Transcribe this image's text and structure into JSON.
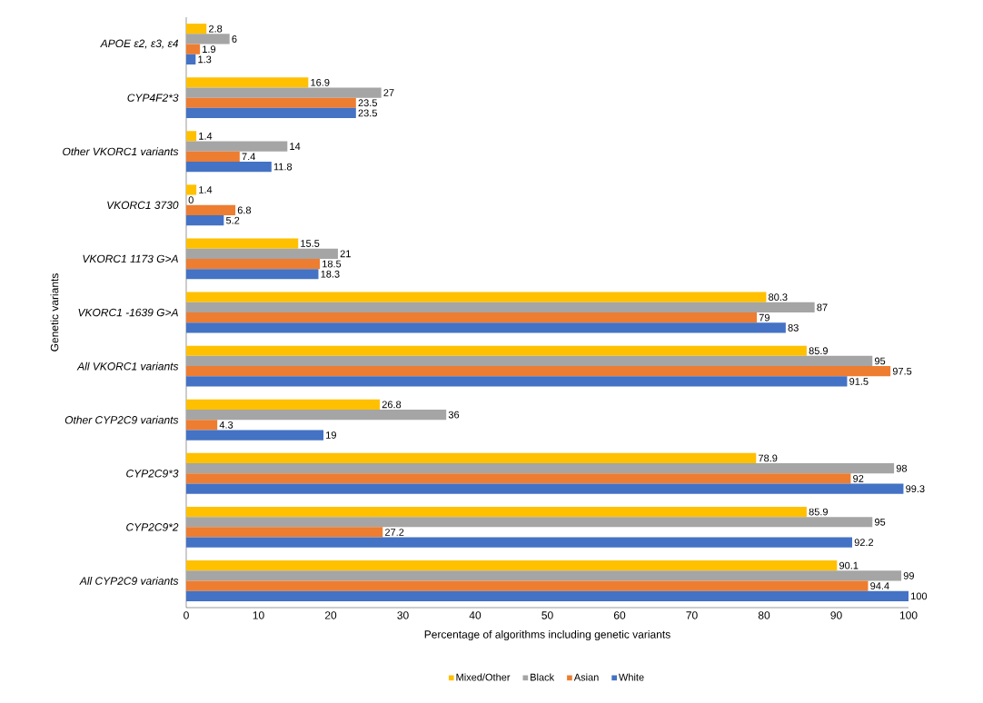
{
  "chart_data": {
    "type": "bar",
    "orientation": "horizontal",
    "xlabel": "Percentage of algorithms including genetic variants",
    "ylabel": "Genetic variants",
    "categories": [
      "APOE ε2, ε3, ε4",
      "CYP4F2*3",
      "Other VKORC1 variants",
      "VKORC1 3730",
      "VKORC1 1173 G>A",
      "VKORC1 -1639 G>A",
      "All VKORC1 variants",
      "Other CYP2C9 variants",
      "CYP2C9*3",
      "CYP2C9*2",
      "All CYP2C9 variants"
    ],
    "series": [
      {
        "name": "Mixed/Other",
        "color": "#ffc000",
        "values": [
          2.8,
          16.9,
          1.4,
          1.4,
          15.5,
          80.3,
          85.9,
          26.8,
          78.9,
          85.9,
          90.1
        ]
      },
      {
        "name": "Black",
        "color": "#a5a5a5",
        "values": [
          6,
          27,
          14,
          0,
          21,
          87,
          95,
          36,
          98,
          95,
          99
        ]
      },
      {
        "name": "Asian",
        "color": "#ed7d31",
        "values": [
          1.9,
          23.5,
          7.4,
          6.8,
          18.5,
          79,
          97.5,
          4.3,
          92,
          27.2,
          94.4
        ]
      },
      {
        "name": "White",
        "color": "#4472c4",
        "values": [
          1.3,
          23.5,
          11.8,
          5.2,
          18.3,
          83,
          91.5,
          19,
          99.3,
          92.2,
          100
        ]
      }
    ],
    "xlim": [
      0,
      100
    ],
    "xticks": [
      0,
      10,
      20,
      30,
      40,
      50,
      60,
      70,
      80,
      90,
      100
    ],
    "data_labels": true,
    "legend": "bottom",
    "grid": false
  }
}
